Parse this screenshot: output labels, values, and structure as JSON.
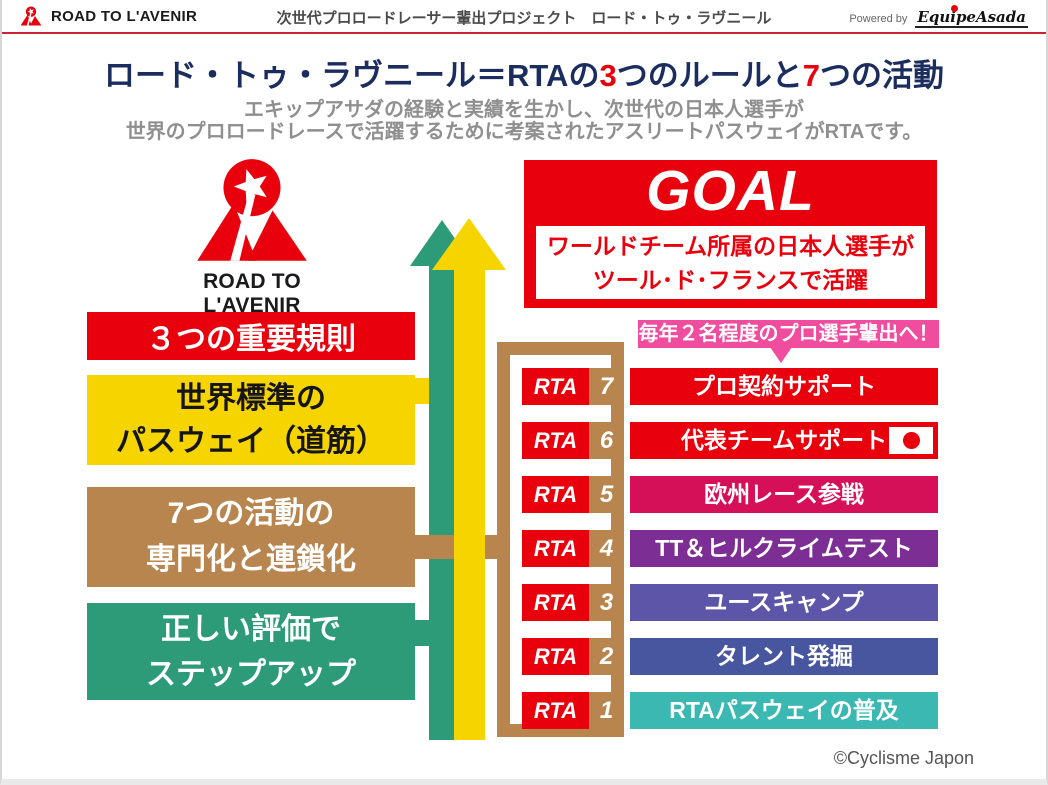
{
  "header": {
    "logo_text": "ROAD TO L'AVENIR",
    "project_title": "次世代プロロードレーサー輩出プロジェクト　ロード・トゥ・ラヴニール",
    "powered_by": "Powered by",
    "brand": "EquipeAsada"
  },
  "intro": {
    "title_part1": "ロード・トゥ・ラヴニール＝RTAの",
    "title_num1": "3",
    "title_part2": "つのルールと",
    "title_num2": "7",
    "title_part3": "つの活動",
    "subtitle_line1": "エキップアサダの経験と実績を生かし、次世代の日本人選手が",
    "subtitle_line2": "世界のプロロードレースで活躍するために考案されたアスリートパスウェイがRTAです。"
  },
  "logo_block": {
    "caption": "ROAD TO L'AVENIR"
  },
  "rules": {
    "box1": {
      "line1": "３つの重要規則"
    },
    "box2": {
      "line1": "世界標準の",
      "line2": "パスウェイ（道筋）"
    },
    "box3": {
      "line1": "7つの活動の",
      "line2": "専門化と連鎖化"
    },
    "box4": {
      "line1": "正しい評価で",
      "line2": "ステップアップ"
    }
  },
  "goal": {
    "title": "GOAL",
    "line1": "ワールドチーム所属の日本人選手が",
    "line2": "ツール･ド･フランスで活躍"
  },
  "callout": {
    "text": "毎年２名程度のプロ選手輩出へ！"
  },
  "rta_rows": [
    {
      "prefix": "RTA",
      "number": "7",
      "label": "プロ契約サポート",
      "color": "#e8000d",
      "flag": false
    },
    {
      "prefix": "RTA",
      "number": "6",
      "label": "代表チームサポート",
      "color": "#e8000d",
      "flag": true
    },
    {
      "prefix": "RTA",
      "number": "5",
      "label": "欧州レース参戦",
      "color": "#d60f59",
      "flag": false
    },
    {
      "prefix": "RTA",
      "number": "4",
      "label": "TT＆ヒルクライムテスト",
      "color": "#7c2e95",
      "flag": false
    },
    {
      "prefix": "RTA",
      "number": "3",
      "label": "ユースキャンプ",
      "color": "#5d55a7",
      "flag": false
    },
    {
      "prefix": "RTA",
      "number": "2",
      "label": "タレント発掘",
      "color": "#47569f",
      "flag": false
    },
    {
      "prefix": "RTA",
      "number": "1",
      "label": "RTAパスウェイの普及",
      "color": "#3cb8b2",
      "flag": false
    }
  ],
  "footer": {
    "copyright": "©Cyclisme Japon"
  },
  "colors": {
    "accent_red": "#e8000d",
    "yellow": "#f6d400",
    "brown": "#b9854e",
    "green": "#2e9b78",
    "pink": "#f04d9e",
    "title_navy": "#1b2d5e",
    "crimson": "#d60f59",
    "purple": "#7c2e95",
    "slate_violet": "#5d55a7",
    "indigo": "#47569f",
    "teal": "#3cb8b2"
  }
}
